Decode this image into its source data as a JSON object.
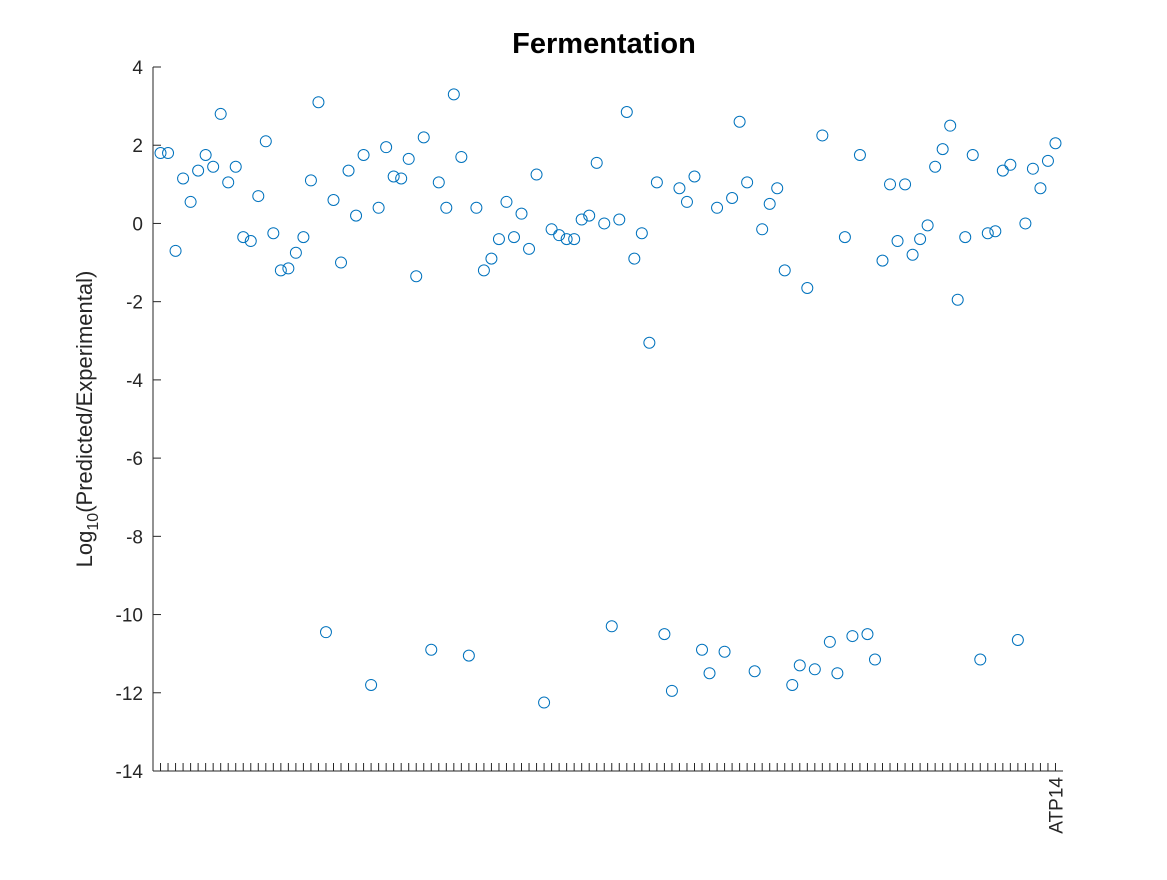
{
  "chart_data": {
    "type": "scatter",
    "title": "Fermentation",
    "ylabel": [
      "Log",
      "10",
      "(Predicted/Experimental)"
    ],
    "color": "#0072bd",
    "categories": [
      null,
      null,
      null,
      null,
      null,
      null,
      null,
      null,
      null,
      null,
      null,
      null,
      null,
      null,
      null,
      null,
      null,
      null,
      null,
      null,
      null,
      null,
      null,
      null,
      null,
      null,
      null,
      null,
      null,
      null,
      null,
      null,
      null,
      null,
      null,
      null,
      null,
      null,
      null,
      null,
      null,
      null,
      null,
      null,
      null,
      null,
      null,
      null,
      null,
      null,
      null,
      null,
      null,
      null,
      null,
      null,
      null,
      null,
      null,
      null,
      null,
      null,
      null,
      null,
      null,
      null,
      null,
      null,
      null,
      null,
      null,
      null,
      null,
      null,
      null,
      null,
      null,
      null,
      null,
      null,
      null,
      null,
      null,
      null,
      null,
      null,
      null,
      null,
      null,
      null,
      null,
      null,
      null,
      null,
      null,
      null,
      null,
      null,
      null,
      null,
      null,
      null,
      null,
      null,
      null,
      null,
      null,
      null,
      null,
      null,
      null,
      null,
      null,
      null,
      null,
      null,
      null,
      null,
      null,
      "ATP14"
    ],
    "values": [
      1.8,
      1.8,
      -0.7,
      1.15,
      0.55,
      1.35,
      1.75,
      1.45,
      2.8,
      1.05,
      1.45,
      -0.35,
      -0.45,
      0.7,
      2.1,
      -0.25,
      -1.2,
      -1.15,
      -0.75,
      -0.35,
      1.1,
      3.1,
      -10.45,
      0.6,
      -1.0,
      1.35,
      0.2,
      1.75,
      -11.8,
      0.4,
      1.95,
      1.2,
      1.15,
      1.65,
      -1.35,
      2.2,
      -10.9,
      1.05,
      0.4,
      3.3,
      1.7,
      -11.05,
      0.4,
      -1.2,
      -0.9,
      -0.4,
      0.55,
      -0.35,
      0.25,
      -0.65,
      1.25,
      -12.25,
      -0.15,
      -0.3,
      -0.4,
      -0.4,
      0.1,
      0.2,
      1.55,
      0.0,
      -10.3,
      0.1,
      2.85,
      -0.9,
      -0.25,
      -3.05,
      1.05,
      -10.5,
      -11.95,
      0.9,
      0.55,
      1.2,
      -10.9,
      -11.5,
      0.4,
      -10.95,
      0.65,
      2.6,
      1.05,
      -11.45,
      -0.15,
      0.5,
      0.9,
      -1.2,
      -11.8,
      -11.3,
      -1.65,
      -11.4,
      2.25,
      -10.7,
      -11.5,
      -0.35,
      -10.55,
      1.75,
      -10.5,
      -11.15,
      -0.95,
      1.0,
      -0.45,
      1.0,
      -0.8,
      -0.4,
      -0.05,
      1.45,
      1.9,
      2.5,
      -1.95,
      -0.35,
      1.75,
      -11.15,
      -0.25,
      -0.2,
      1.35,
      1.5,
      -10.65,
      0.0,
      1.4,
      0.9,
      1.6,
      2.05
    ],
    "xlim": [
      0,
      121
    ],
    "ylim": [
      -14,
      4
    ],
    "yticks": [
      -14,
      -12,
      -10,
      -8,
      -6,
      -4,
      -2,
      0,
      2,
      4
    ]
  }
}
